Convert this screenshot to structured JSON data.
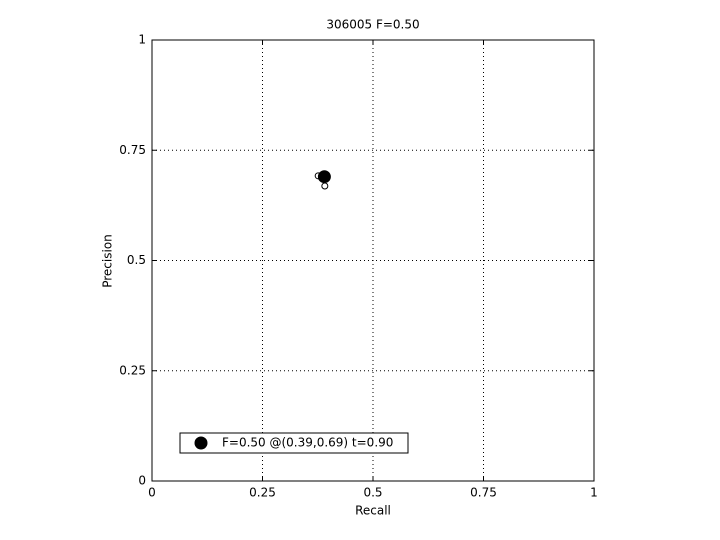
{
  "chart_data": {
    "type": "scatter",
    "title": "306005 F=0.50",
    "x_label": "Recall",
    "y_label": "Precision",
    "xlim": [
      0,
      1
    ],
    "ylim": [
      0,
      1
    ],
    "xticks": [
      0,
      0.25,
      0.5,
      0.75,
      1
    ],
    "yticks": [
      0,
      0.25,
      0.5,
      0.75,
      1
    ],
    "grid": true,
    "legend": "lower left",
    "series": [
      {
        "color": "#000000",
        "marker": "open",
        "x": [
          0.376,
          0.386,
          0.391
        ],
        "values": [
          0.692,
          0.69,
          0.669
        ]
      },
      {
        "name": "F=0.50 @(0.39,0.69) t=0.90",
        "color": "#000000",
        "marker": "filled",
        "x": [
          0.39
        ],
        "values": [
          0.69
        ]
      }
    ]
  }
}
